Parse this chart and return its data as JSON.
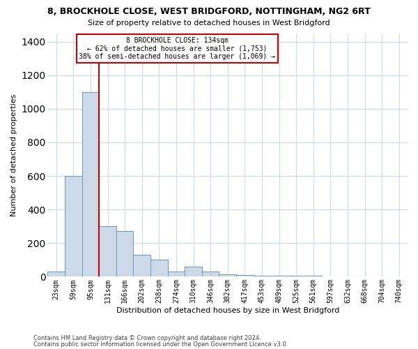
{
  "title1": "8, BROCKHOLE CLOSE, WEST BRIDGFORD, NOTTINGHAM, NG2 6RT",
  "title2": "Size of property relative to detached houses in West Bridgford",
  "xlabel": "Distribution of detached houses by size in West Bridgford",
  "ylabel": "Number of detached properties",
  "footnote1": "Contains HM Land Registry data © Crown copyright and database right 2024.",
  "footnote2": "Contains public sector information licensed under the Open Government Licence v3.0.",
  "bar_color": "#ccd9e8",
  "bar_edge_color": "#6699bb",
  "grid_color": "#ccd9e8",
  "annotation_box_color": "#cc0000",
  "vline_color": "#cc0000",
  "categories": [
    "23sqm",
    "59sqm",
    "95sqm",
    "131sqm",
    "166sqm",
    "202sqm",
    "238sqm",
    "274sqm",
    "310sqm",
    "346sqm",
    "382sqm",
    "417sqm",
    "453sqm",
    "489sqm",
    "525sqm",
    "561sqm",
    "597sqm",
    "632sqm",
    "668sqm",
    "704sqm",
    "740sqm"
  ],
  "values": [
    30,
    600,
    1100,
    300,
    270,
    130,
    100,
    30,
    60,
    30,
    15,
    10,
    5,
    5,
    5,
    5,
    0,
    0,
    0,
    0,
    0
  ],
  "ylim": [
    0,
    1450
  ],
  "yticks": [
    0,
    200,
    400,
    600,
    800,
    1000,
    1200,
    1400
  ],
  "property_label": "8 BROCKHOLE CLOSE: 134sqm",
  "annotation_line1": "← 62% of detached houses are smaller (1,753)",
  "annotation_line2": "38% of semi-detached houses are larger (1,069) →",
  "vline_x": 2.5,
  "background_color": "#ffffff",
  "title1_fontsize": 9,
  "title2_fontsize": 8,
  "xlabel_fontsize": 8,
  "ylabel_fontsize": 8,
  "tick_fontsize": 7,
  "footnote_fontsize": 6,
  "annotation_fontsize": 7
}
